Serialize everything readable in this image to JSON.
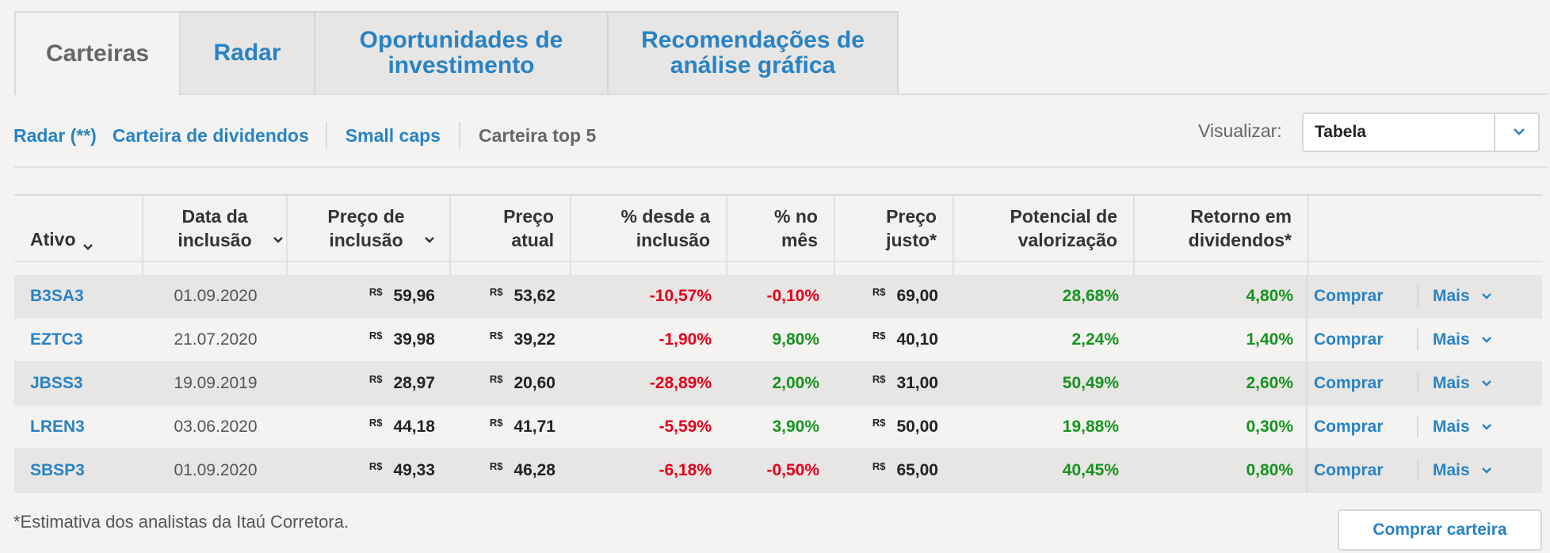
{
  "tabs": [
    {
      "label": "Carteiras",
      "active": true
    },
    {
      "label": "Radar",
      "active": false
    },
    {
      "label": "Oportunidades de investimento",
      "active": false
    },
    {
      "label": "Recomendações de análise gráfica",
      "active": false
    }
  ],
  "subnav": {
    "items": [
      "Radar (**)",
      "Carteira de dividendos",
      "Small caps",
      "Carteira top 5"
    ],
    "active": "Carteira top 5"
  },
  "view": {
    "label": "Visualizar:",
    "selected": "Tabela"
  },
  "table": {
    "headers": {
      "ativo": "Ativo",
      "data": "Data da inclusão",
      "preco_inclusao": "Preço de inclusão",
      "preco_atual": "Preço atual",
      "desde_inclusao": "% desde a inclusão",
      "no_mes": "% no mês",
      "preco_justo": "Preço justo*",
      "potencial": "Potencial de valorização",
      "retorno": "Retorno em dividendos*"
    },
    "currency": "R$",
    "rows": [
      {
        "ativo": "B3SA3",
        "data": "01.09.2020",
        "preco_inclusao": "59,96",
        "preco_atual": "53,62",
        "desde_inclusao": "-10,57%",
        "no_mes": "-0,10%",
        "preco_justo": "69,00",
        "potencial": "28,68%",
        "retorno": "4,80%"
      },
      {
        "ativo": "EZTC3",
        "data": "21.07.2020",
        "preco_inclusao": "39,98",
        "preco_atual": "39,22",
        "desde_inclusao": "-1,90%",
        "no_mes": "9,80%",
        "preco_justo": "40,10",
        "potencial": "2,24%",
        "retorno": "1,40%"
      },
      {
        "ativo": "JBSS3",
        "data": "19.09.2019",
        "preco_inclusao": "28,97",
        "preco_atual": "20,60",
        "desde_inclusao": "-28,89%",
        "no_mes": "2,00%",
        "preco_justo": "31,00",
        "potencial": "50,49%",
        "retorno": "2,60%"
      },
      {
        "ativo": "LREN3",
        "data": "03.06.2020",
        "preco_inclusao": "44,18",
        "preco_atual": "41,71",
        "desde_inclusao": "-5,59%",
        "no_mes": "3,90%",
        "preco_justo": "50,00",
        "potencial": "19,88%",
        "retorno": "0,30%"
      },
      {
        "ativo": "SBSP3",
        "data": "01.09.2020",
        "preco_inclusao": "49,33",
        "preco_atual": "46,28",
        "desde_inclusao": "-6,18%",
        "no_mes": "-0,50%",
        "preco_justo": "65,00",
        "potencial": "40,45%",
        "retorno": "0,80%"
      }
    ],
    "actions": {
      "buy": "Comprar",
      "more": "Mais"
    }
  },
  "footer": {
    "note": "*Estimativa dos analistas da Itaú Corretora.",
    "buy_portfolio": "Comprar carteira"
  },
  "colors": {
    "link": "#2883c6",
    "negative": "#e3001b",
    "positive": "#15941f"
  }
}
